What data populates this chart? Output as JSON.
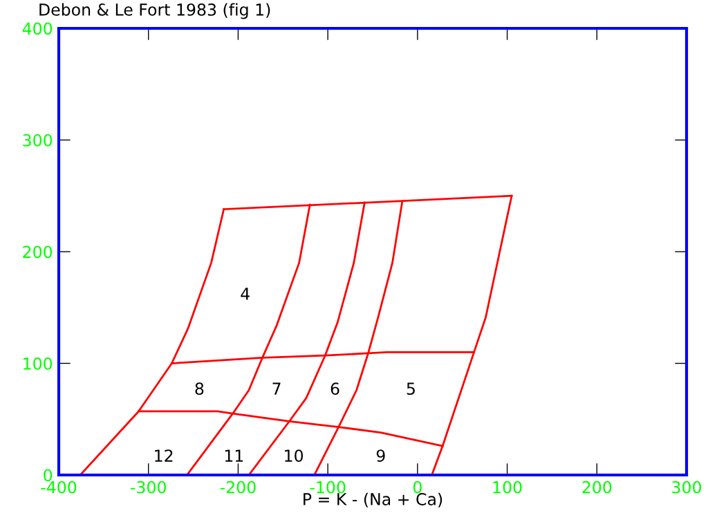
{
  "chart_data": {
    "type": "line",
    "title": "Debon & Le Fort 1983 (fig 1)",
    "xlabel": "P = K - (Na + Ca)",
    "xlim": [
      -400,
      300
    ],
    "xticks": [
      -400,
      -300,
      -200,
      -100,
      0,
      100,
      200,
      300
    ],
    "ylim": [
      0,
      400
    ],
    "yticks": [
      0,
      100,
      200,
      300,
      400
    ],
    "grid": false,
    "legend": false,
    "marker": "none",
    "line_style": "solid",
    "series": [
      {
        "color": "#ff0000",
        "x": [
          -376,
          -311,
          -274,
          -256,
          -230,
          -216
        ],
        "values": [
          0,
          57,
          100,
          131,
          190,
          238
        ]
      },
      {
        "color": "#ff0000",
        "x": [
          -216,
          105
        ],
        "values": [
          238,
          250
        ]
      },
      {
        "color": "#ff0000",
        "x": [
          105,
          76,
          63,
          28,
          16
        ],
        "values": [
          250,
          141,
          110,
          26,
          0
        ]
      },
      {
        "color": "#ff0000",
        "x": [
          -274,
          -173,
          -103,
          -55,
          -34,
          63
        ],
        "values": [
          100,
          105,
          107,
          109,
          110,
          110
        ]
      },
      {
        "color": "#ff0000",
        "x": [
          -311,
          -223,
          -206,
          -143,
          -88,
          -41,
          28
        ],
        "values": [
          57,
          57,
          55,
          48,
          43,
          38,
          26
        ]
      },
      {
        "color": "#ff0000",
        "x": [
          -120,
          -132,
          -157,
          -173,
          -188,
          -206,
          -257
        ],
        "values": [
          242,
          190,
          134,
          105,
          76,
          55,
          0
        ]
      },
      {
        "color": "#ff0000",
        "x": [
          -59,
          -71,
          -89,
          -103,
          -124,
          -143,
          -188
        ],
        "values": [
          244,
          190,
          137,
          107,
          69,
          48,
          0
        ]
      },
      {
        "color": "#ff0000",
        "x": [
          -17,
          -28,
          -44,
          -55,
          -68,
          -88,
          -115
        ],
        "values": [
          245,
          190,
          141,
          109,
          76,
          43,
          0
        ]
      }
    ],
    "annotations": [
      "4",
      "8",
      "7",
      "6",
      "5",
      "12",
      "11",
      "10",
      "9"
    ]
  }
}
